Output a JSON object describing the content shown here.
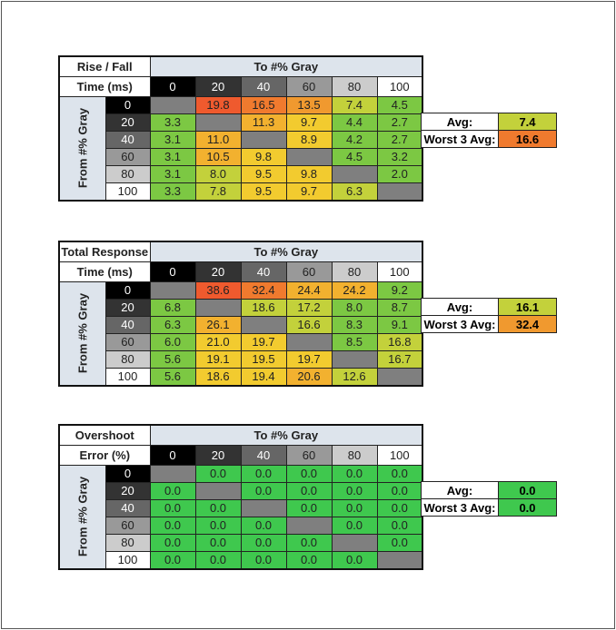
{
  "palette": {
    "X": "#7f7f7f",
    "G": "#7cc843",
    "YG": "#c3d13b",
    "Y": "#f2cb2f",
    "YO": "#f2b12f",
    "O2": "#f0992f",
    "O": "#f07a2e",
    "R": "#ef5a2e",
    "GG": "#3fc84e"
  },
  "header_colors": [
    {
      "bg": "#000000",
      "fg": "#ffffff"
    },
    {
      "bg": "#333333",
      "fg": "#ffffff"
    },
    {
      "bg": "#666666",
      "fg": "#ffffff"
    },
    {
      "bg": "#999999",
      "fg": "#222222"
    },
    {
      "bg": "#cccccc",
      "fg": "#222222"
    },
    {
      "bg": "#ffffff",
      "fg": "#222222"
    }
  ],
  "chart_data": [
    {
      "type": "heatmap",
      "title_line1": "Rise / Fall",
      "title_line2": "Time (ms)",
      "col_header": "To #% Gray",
      "row_header": "From #% Gray",
      "categories": [
        "0",
        "20",
        "40",
        "60",
        "80",
        "100"
      ],
      "values": [
        [
          "",
          "19.8",
          "16.5",
          "13.5",
          "7.4",
          "4.5"
        ],
        [
          "3.3",
          "",
          "11.3",
          "9.7",
          "4.4",
          "2.7"
        ],
        [
          "3.1",
          "11.0",
          "",
          "8.9",
          "4.2",
          "2.7"
        ],
        [
          "3.1",
          "10.5",
          "9.8",
          "",
          "4.5",
          "3.2"
        ],
        [
          "3.1",
          "8.0",
          "9.5",
          "9.8",
          "",
          "2.0"
        ],
        [
          "3.3",
          "7.8",
          "9.5",
          "9.7",
          "6.3",
          ""
        ]
      ],
      "colors": [
        [
          "X",
          "R",
          "O",
          "O2",
          "YG",
          "G"
        ],
        [
          "G",
          "X",
          "YO",
          "Y",
          "G",
          "G"
        ],
        [
          "G",
          "YO",
          "X",
          "Y",
          "G",
          "G"
        ],
        [
          "G",
          "YO",
          "Y",
          "X",
          "G",
          "G"
        ],
        [
          "G",
          "YG",
          "Y",
          "Y",
          "X",
          "G"
        ],
        [
          "G",
          "YG",
          "Y",
          "Y",
          "YG",
          "X"
        ]
      ],
      "avg_label": "Avg:",
      "avg": "7.4",
      "avg_color": "YG",
      "worst_label": "Worst 3 Avg:",
      "worst": "16.6",
      "worst_color": "O"
    },
    {
      "type": "heatmap",
      "title_line1": "Total Response",
      "title_line2": "Time (ms)",
      "col_header": "To #% Gray",
      "row_header": "From #% Gray",
      "categories": [
        "0",
        "20",
        "40",
        "60",
        "80",
        "100"
      ],
      "values": [
        [
          "",
          "38.6",
          "32.4",
          "24.4",
          "24.2",
          "9.2"
        ],
        [
          "6.8",
          "",
          "18.6",
          "17.2",
          "8.0",
          "8.7"
        ],
        [
          "6.3",
          "26.1",
          "",
          "16.6",
          "8.3",
          "9.1"
        ],
        [
          "6.0",
          "21.0",
          "19.7",
          "",
          "8.5",
          "16.8"
        ],
        [
          "5.6",
          "19.1",
          "19.5",
          "19.7",
          "",
          "16.7"
        ],
        [
          "5.6",
          "18.6",
          "19.4",
          "20.6",
          "12.6",
          ""
        ]
      ],
      "colors": [
        [
          "X",
          "R",
          "O",
          "YO",
          "YO",
          "G"
        ],
        [
          "G",
          "X",
          "YG",
          "YG",
          "G",
          "G"
        ],
        [
          "G",
          "YO",
          "X",
          "YG",
          "G",
          "G"
        ],
        [
          "G",
          "Y",
          "Y",
          "X",
          "G",
          "YG"
        ],
        [
          "G",
          "Y",
          "Y",
          "Y",
          "X",
          "YG"
        ],
        [
          "G",
          "Y",
          "Y",
          "YO",
          "YG",
          "X"
        ]
      ],
      "avg_label": "Avg:",
      "avg": "16.1",
      "avg_color": "YG",
      "worst_label": "Worst 3 Avg:",
      "worst": "32.4",
      "worst_color": "O2"
    },
    {
      "type": "heatmap",
      "title_line1": "Overshoot",
      "title_line2": "Error (%)",
      "col_header": "To #% Gray",
      "row_header": "From #% Gray",
      "categories": [
        "0",
        "20",
        "40",
        "60",
        "80",
        "100"
      ],
      "values": [
        [
          "",
          "0.0",
          "0.0",
          "0.0",
          "0.0",
          "0.0"
        ],
        [
          "0.0",
          "",
          "0.0",
          "0.0",
          "0.0",
          "0.0"
        ],
        [
          "0.0",
          "0.0",
          "",
          "0.0",
          "0.0",
          "0.0"
        ],
        [
          "0.0",
          "0.0",
          "0.0",
          "",
          "0.0",
          "0.0"
        ],
        [
          "0.0",
          "0.0",
          "0.0",
          "0.0",
          "",
          "0.0"
        ],
        [
          "0.0",
          "0.0",
          "0.0",
          "0.0",
          "0.0",
          ""
        ]
      ],
      "colors": [
        [
          "X",
          "GG",
          "GG",
          "GG",
          "GG",
          "GG"
        ],
        [
          "GG",
          "X",
          "GG",
          "GG",
          "GG",
          "GG"
        ],
        [
          "GG",
          "GG",
          "X",
          "GG",
          "GG",
          "GG"
        ],
        [
          "GG",
          "GG",
          "GG",
          "X",
          "GG",
          "GG"
        ],
        [
          "GG",
          "GG",
          "GG",
          "GG",
          "X",
          "GG"
        ],
        [
          "GG",
          "GG",
          "GG",
          "GG",
          "GG",
          "X"
        ]
      ],
      "avg_label": "Avg:",
      "avg": "0.0",
      "avg_color": "GG",
      "worst_label": "Worst 3 Avg:",
      "worst": "0.0",
      "worst_color": "GG"
    }
  ]
}
